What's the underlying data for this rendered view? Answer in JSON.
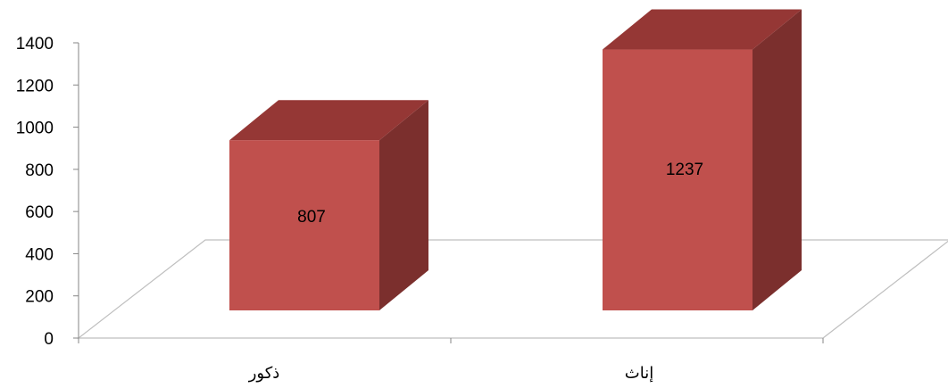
{
  "chart_data": {
    "type": "bar",
    "style": "3d-column",
    "title": "",
    "xlabel": "",
    "ylabel": "",
    "categories": [
      "ذكور",
      "إناث"
    ],
    "values": [
      807,
      1237
    ],
    "data_labels": [
      "807",
      "1237"
    ],
    "ylim": [
      0,
      1400
    ],
    "yticks": [
      "0",
      "200",
      "400",
      "600",
      "800",
      "1000",
      "1200",
      "1400"
    ],
    "grid": false,
    "legend": "none",
    "colors": {
      "front": "#c0504d",
      "top": "#953735",
      "side": "#7b2f2d",
      "floor": "#bfbfbf",
      "axis": "#868686"
    }
  }
}
